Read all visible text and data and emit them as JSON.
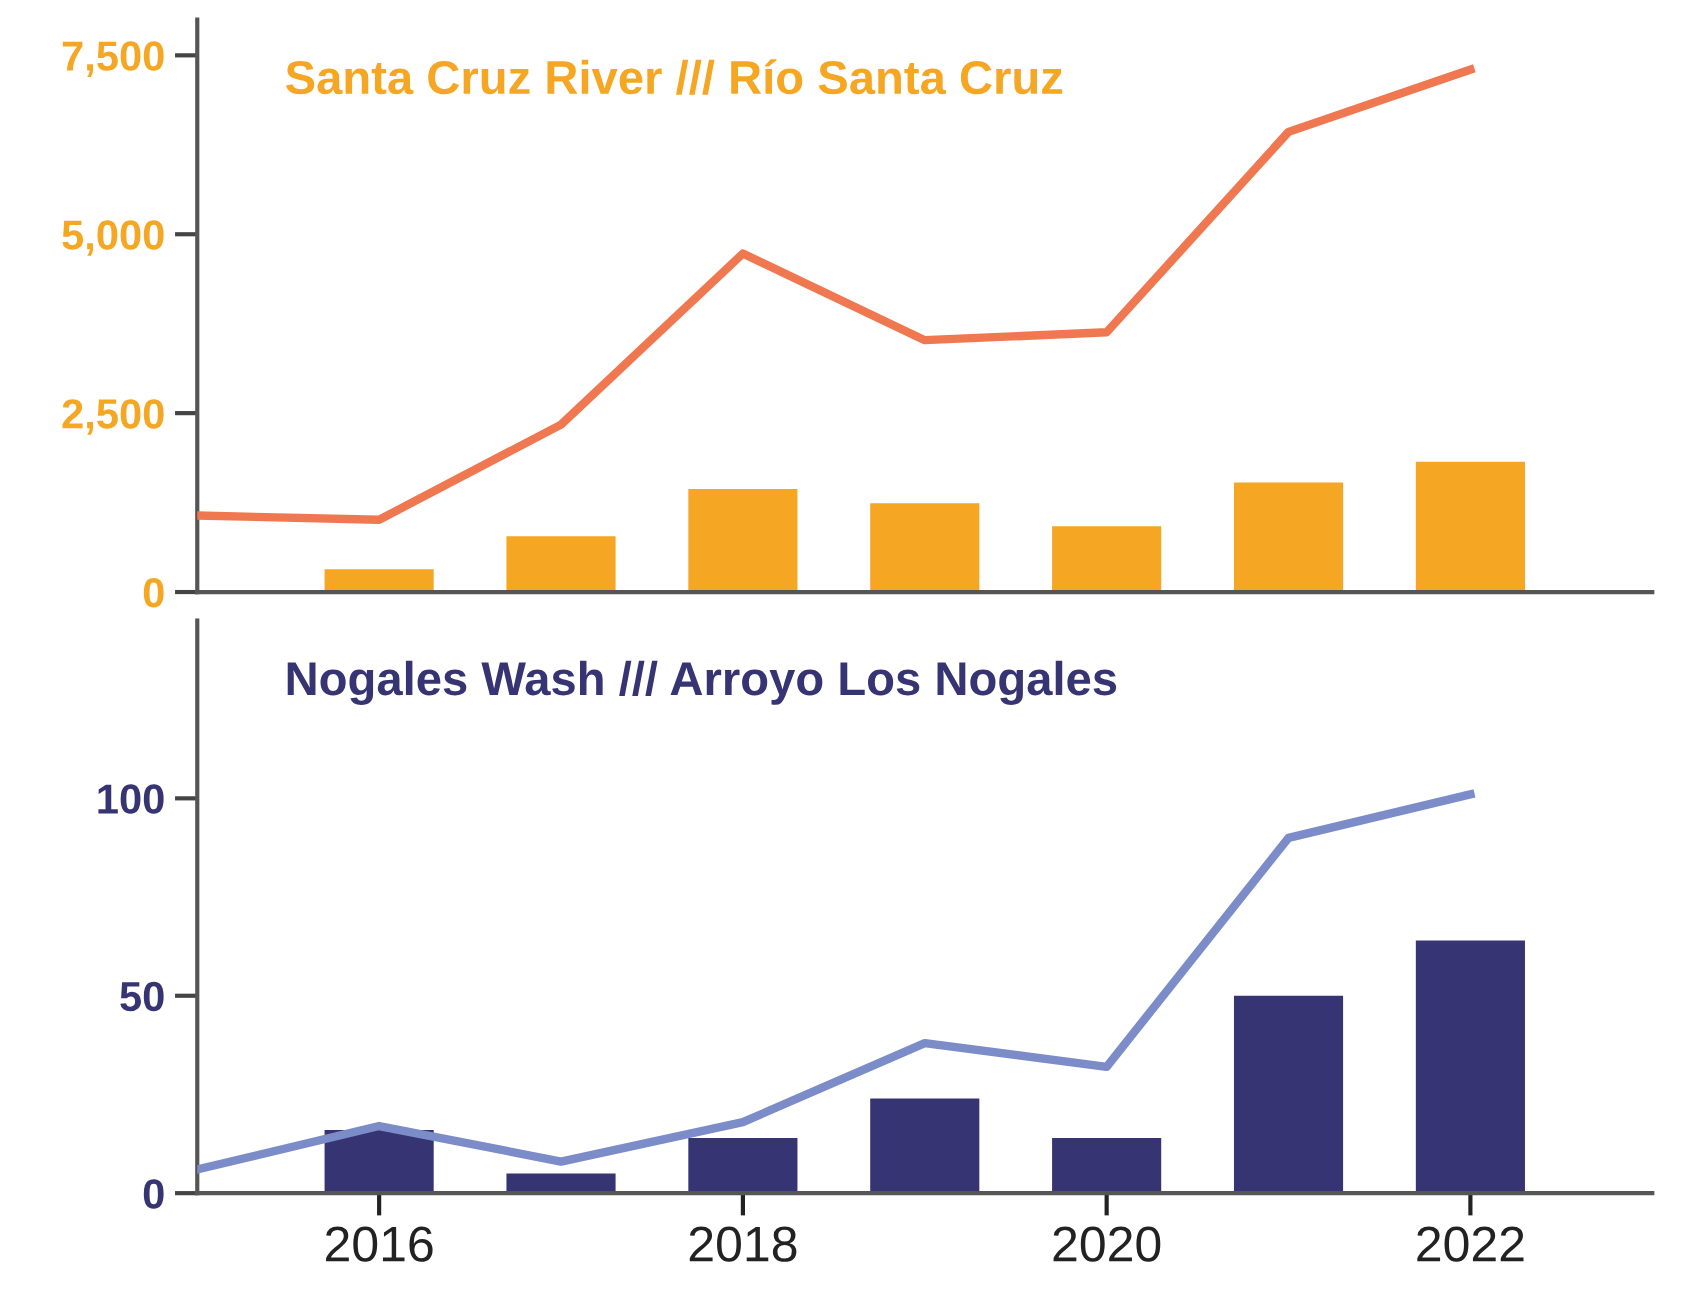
{
  "chart_data": [
    {
      "type": "bar",
      "title": "Santa Cruz River /// Río Santa Cruz",
      "xlim": [
        2015,
        2023
      ],
      "ylim": [
        0,
        8000
      ],
      "yticks": [
        {
          "value": 0,
          "label": "0"
        },
        {
          "value": 2500,
          "label": "2,500"
        },
        {
          "value": 5000,
          "label": "5,000"
        },
        {
          "value": 7500,
          "label": "7,500"
        }
      ],
      "tick_labels": "y",
      "grid": false,
      "legend": false,
      "series": [
        {
          "color": "#f5a623",
          "x": [
            2016,
            2017,
            2018,
            2019,
            2020,
            2021,
            2022
          ],
          "values": [
            320,
            780,
            1440,
            1240,
            920,
            1530,
            1820
          ]
        },
        {
          "type": "line",
          "color": "#f07850",
          "x": [
            2015,
            2016,
            2017,
            2018,
            2019,
            2020,
            2021,
            2022
          ],
          "values": [
            1070,
            1010,
            2340,
            4730,
            3520,
            3630,
            6430,
            7300
          ]
        }
      ]
    },
    {
      "type": "bar",
      "title": "Nogales Wash /// Arroyo Los Nogales",
      "xlim": [
        2015,
        2023
      ],
      "xticks": [
        2016,
        2018,
        2020,
        2022
      ],
      "ylim": [
        0,
        145
      ],
      "yticks": [
        0,
        50,
        100
      ],
      "grid": false,
      "legend": false,
      "series": [
        {
          "color": "#363472",
          "x": [
            2016,
            2017,
            2018,
            2019,
            2020,
            2021,
            2022
          ],
          "values": [
            16,
            5,
            14,
            24,
            14,
            50,
            64
          ]
        },
        {
          "type": "line",
          "color": "#7b8cc9",
          "x": [
            2015,
            2016,
            2017,
            2018,
            2019,
            2020,
            2021,
            2022
          ],
          "values": [
            6,
            17,
            8,
            18,
            38,
            32,
            90,
            101
          ]
        }
      ]
    }
  ]
}
